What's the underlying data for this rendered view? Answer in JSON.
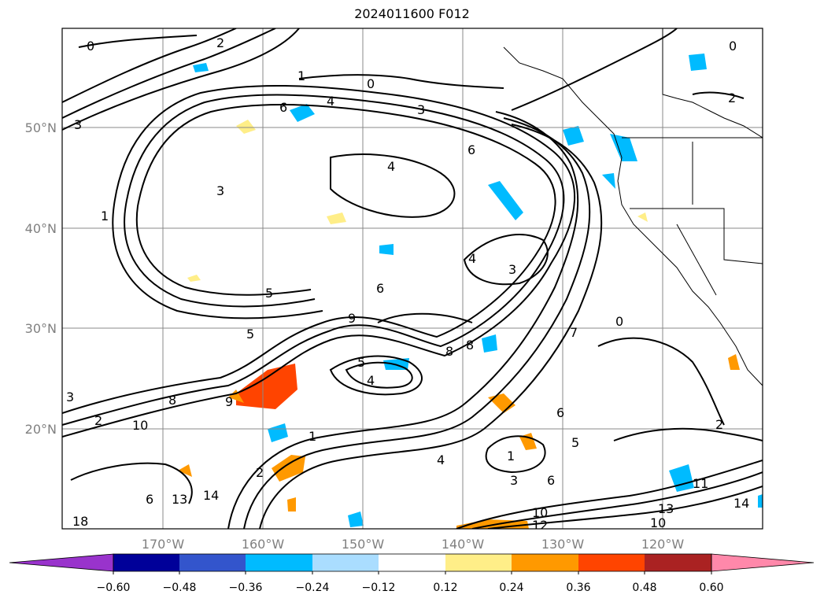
{
  "title": "2024011600 F012",
  "map": {
    "lat_labels": [
      "50°N",
      "40°N",
      "30°N",
      "20°N"
    ],
    "lon_labels": [
      "170°W",
      "160°W",
      "150°W",
      "140°W",
      "130°W",
      "120°W"
    ],
    "contour_labels": [
      "0",
      "2",
      "3",
      "0",
      "1",
      "2",
      "0",
      "4",
      "3",
      "6",
      "4",
      "3",
      "6",
      "1",
      "3",
      "4",
      "5",
      "5",
      "6",
      "9",
      "8",
      "8",
      "5",
      "4",
      "8",
      "10",
      "7",
      "4",
      "6",
      "5",
      "1",
      "3",
      "6",
      "2",
      "14",
      "13",
      "12",
      "10",
      "11",
      "14",
      "13",
      "10",
      "18",
      "6",
      "2",
      "0",
      "2",
      "1",
      "3",
      "9"
    ]
  },
  "colorbar": {
    "ticks": [
      "−0.60",
      "−0.48",
      "−0.36",
      "−0.24",
      "−0.12",
      "0.12",
      "0.24",
      "0.36",
      "0.48",
      "0.60"
    ],
    "colors": [
      "#9933cc",
      "#000099",
      "#3355cc",
      "#00bbff",
      "#aaddff",
      "#ffffff",
      "#ffee88",
      "#ff9900",
      "#ff4400",
      "#aa2222",
      "#ff88aa"
    ]
  }
}
